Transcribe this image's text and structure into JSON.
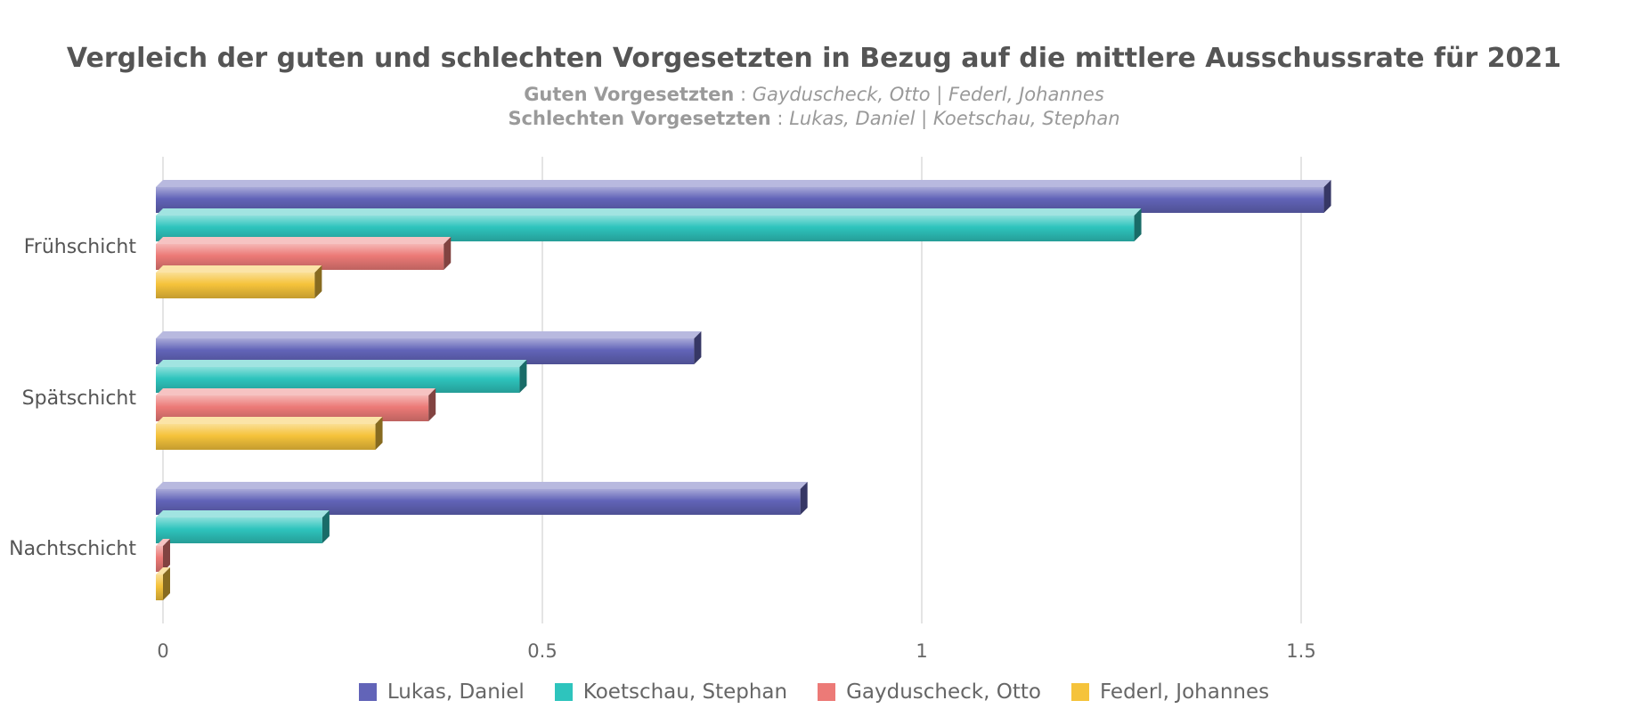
{
  "chart_data": {
    "type": "bar",
    "orientation": "horizontal",
    "title": "Vergleich der guten und schlechten Vorgesetzten in Bezug auf die mittlere Ausschussrate für 2021",
    "subtitle_lines": [
      {
        "label": "Guten Vorgesetzten",
        "sep": " : ",
        "value": "Gayduscheck, Otto | Federl, Johannes"
      },
      {
        "label": "Schlechten Vorgesetzten",
        "sep": " : ",
        "value": "Lukas, Daniel | Koetschau, Stephan"
      }
    ],
    "categories": [
      "Frühschicht",
      "Spätschicht",
      "Nachtschicht"
    ],
    "series": [
      {
        "name": "Lukas, Daniel",
        "color": "#6264b8",
        "values": [
          1.53,
          0.7,
          0.84
        ]
      },
      {
        "name": "Koetschau, Stephan",
        "color": "#2ec4bd",
        "values": [
          1.28,
          0.47,
          0.21
        ]
      },
      {
        "name": "Gayduscheck, Otto",
        "color": "#ec7a77",
        "values": [
          0.37,
          0.35,
          0.0
        ]
      },
      {
        "name": "Federl, Johannes",
        "color": "#f5c33b",
        "values": [
          0.2,
          0.28,
          0.0
        ]
      }
    ],
    "xticks": [
      "0",
      "0.5",
      "1",
      "1.5"
    ],
    "xlim": [
      0,
      2.3
    ],
    "grid": true,
    "legend_position": "bottom"
  }
}
